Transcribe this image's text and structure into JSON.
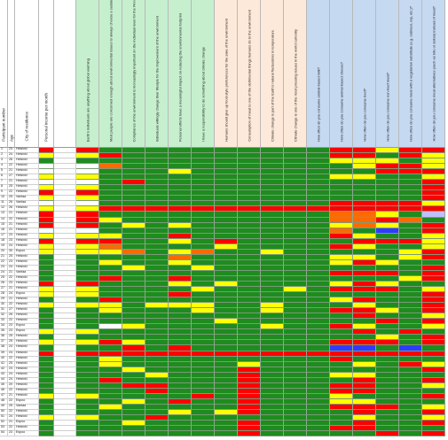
{
  "sheet": {
    "columns": [
      {
        "key": "participant",
        "label": "Participant number",
        "type": "label",
        "bg": "#ffffff"
      },
      {
        "key": "age",
        "label": "Age",
        "type": "label",
        "bg": "#ffffff"
      },
      {
        "key": "city",
        "label": "City of residence",
        "type": "label",
        "bg": "#ffffff"
      },
      {
        "key": "income",
        "label": "Personal income per month",
        "type": "label",
        "bg": "#ffffff"
      },
      {
        "key": "blank",
        "label": "",
        "type": "label",
        "bg": "#ffffff"
      },
      {
        "key": "q1",
        "label": "Earth's individuals are anything about global warming",
        "type": "q",
        "bg": "#c6efce"
      },
      {
        "key": "q2",
        "label": "Most people are concerned enough about environmental issues to always choose a sustainable option",
        "type": "q",
        "bg": "#c6efce"
      },
      {
        "key": "q3",
        "label": "Compliance of the environment is increasingly important on the individual level for the Finnish environment",
        "type": "q",
        "bg": "#c6efce"
      },
      {
        "key": "q4",
        "label": "Individuals willingly change their lifestyle for the improvement of the environment",
        "type": "q",
        "bg": "#c6efce"
      },
      {
        "key": "q5",
        "label": "Personal efforts have a meaningful impact on reducing the environmental footprint",
        "type": "q",
        "bg": "#c6efce"
      },
      {
        "key": "q6",
        "label": "I have a responsibility to do something about climate change",
        "type": "q",
        "bg": "#c6efce"
      },
      {
        "key": "q7",
        "label": "Humans should give up food-style preferences for the sake of the environment",
        "type": "q",
        "bg": "#fde9d9"
      },
      {
        "key": "q8",
        "label": "Consumption of meat is one of the detrimental things humans do to the environment",
        "type": "q",
        "bg": "#fde9d9"
      },
      {
        "key": "q9",
        "label": "Climate change is part of the Earth's natural fluctuations in temperature",
        "type": "q",
        "bg": "#fde9d9"
      },
      {
        "key": "q10",
        "label": "Climate change is one of the most pressing issues in the world currently",
        "type": "q",
        "bg": "#fde9d9"
      },
      {
        "key": "q11",
        "label": "How often do you consume animal-based milk?",
        "type": "q",
        "bg": "#c5d9f1"
      },
      {
        "key": "q12",
        "label": "How often do you consume animal-based cheese?",
        "type": "q",
        "bg": "#c5d9f1"
      },
      {
        "key": "q13",
        "label": "How often do you consume beef?",
        "type": "q",
        "bg": "#c5d9f1"
      },
      {
        "key": "q14",
        "label": "How often do you consume non-beef meat?",
        "type": "q",
        "bg": "#c5d9f1"
      },
      {
        "key": "q15",
        "label": "How often do you consume meat with a vegetarian substitute (e.g. oatmeal, soy, etc.)?",
        "type": "q",
        "bg": "#c5d9f1"
      },
      {
        "key": "q16",
        "label": "How often do you consume meat alternatives (such as tofu or seitan) instead of meat?",
        "type": "q",
        "bg": "#c5d9f1"
      }
    ],
    "colors": {
      "G": "#1e8c1e",
      "Y": "#ffff00",
      "R": "#ff0000",
      "O": "#ff6a00",
      "B": "#2f3cff",
      "P": "#c0c0ff",
      "W": "#ffffff"
    },
    "rows": [
      {
        "participant": "1",
        "age": "23",
        "city": "Helsinki",
        "cells": "RGGGGGGGGGGRRYRR",
        "vals": "4.........................1..4.."
      },
      {
        "participant": "2",
        "age": "24",
        "city": "Helsinki",
        "cells": "YRGGGGGGGGGRRGRY",
        "vals": "............................."
      },
      {
        "participant": "3",
        "age": "26",
        "city": "Helsinki",
        "cells": "GGGGGGGGGGGYYYGY",
        "vals": "....................4.4.4..3"
      },
      {
        "participant": "4",
        "age": "22",
        "city": "Helsinki",
        "cells": "WOGGGGGGGGGGYRRY",
        "vals": "1..........................."
      },
      {
        "participant": "5",
        "age": "21",
        "city": "Helsinki",
        "cells": "WGGGYGGGGGGGGRRR",
        "vals": "1.....2....................."
      },
      {
        "participant": "6",
        "age": "27",
        "city": "Helsinki",
        "cells": "YGGGGGGGGGGYYGGY",
        "vals": "....................4.4....."
      },
      {
        "participant": "7",
        "age": "21",
        "city": "Helsinki",
        "cells": "WGRGGGGGGGGGGGGR",
        "vals": "1..........................."
      },
      {
        "participant": "8",
        "age": "25",
        "city": "Helsinki",
        "cells": "YGGGGGGGGGGGGGGR",
        "vals": "............................"
      },
      {
        "participant": "9",
        "age": "22",
        "city": "Helsinki",
        "cells": "RGGGGGGGGGGGGGGR",
        "vals": "............................"
      },
      {
        "participant": "10",
        "age": "25",
        "city": "Vantaa",
        "cells": "YGGGGGGGGGGGGGGR",
        "vals": "............................"
      },
      {
        "participant": "11",
        "age": "26",
        "city": "Vantaa",
        "cells": "WGGGGGGGGGGRRRRY",
        "vals": "1...................3.3.3.3."
      },
      {
        "participant": "12",
        "age": "26",
        "city": "Helsinki",
        "cells": "YRRRRRRRRRRRRRRR",
        "vals": "..........................."
      },
      {
        "participant": "13",
        "age": "21",
        "city": "Helsinki",
        "cells": "RGGGGGGGGGGOOYGP",
        "vals": "....................3.3.4..."
      },
      {
        "participant": "14",
        "age": "22",
        "city": "Helsinki",
        "cells": "RYGGGGGGGGGOOROG",
        "vals": "2........................."
      },
      {
        "participant": "15",
        "age": "21",
        "city": "Helsinki",
        "cells": "RGYGYGGGGGGYOYGR",
        "vals": "......2...................."
      },
      {
        "participant": "16",
        "age": "21",
        "city": "Helsinki",
        "cells": "WGGGGGGGGGGOGBGR",
        "vals": "1..........................."
      },
      {
        "participant": "17",
        "age": "23",
        "city": "Helsinki",
        "cells": "YYGGRGGGGGGRYGGY",
        "vals": "...................4......4."
      },
      {
        "participant": "18",
        "age": "23",
        "city": "Helsinki",
        "cells": "RRGGYGRGGGGGRRRY",
        "vals": ".........................."
      },
      {
        "participant": "19",
        "age": "24",
        "city": "Helsinki",
        "cells": "YOGGGGYGGGGRYGGY",
        "vals": ".........................."
      },
      {
        "participant": "20",
        "age": "30",
        "city": "Espoo",
        "cells": "YYOGYOGGYGGGGGYR",
        "vals": "2.2.....2..2..2..........."
      },
      {
        "participant": "21",
        "age": "25",
        "city": "Helsinki",
        "cells": "GGGGOGGGGGGYYGYR",
        "vals": ".........................."
      },
      {
        "participant": "22",
        "age": "23",
        "city": "Helsinki",
        "cells": "GYGGYGGGGGGYRYGG",
        "vals": ".........................."
      },
      {
        "participant": "23",
        "age": "24",
        "city": "Helsinki",
        "cells": "GGYGGYGGGGGGGGGR",
        "vals": ".........................."
      },
      {
        "participant": "24",
        "age": "21",
        "city": "Vantaa",
        "cells": "GGGGGGGGGGGRRRGR",
        "vals": ".........................."
      },
      {
        "participant": "25",
        "age": "22",
        "city": "Helsinki",
        "cells": "GRGGRGGGGGGGGGYR",
        "vals": ".........................."
      },
      {
        "participant": "26",
        "age": "23",
        "city": "Helsinki",
        "cells": "RGGGYGYGGGGYRYGG",
        "vals": ".........................."
      },
      {
        "participant": "27",
        "age": "21",
        "city": "Helsinki",
        "cells": "YGGGGYGGGYGRRRGY",
        "vals": ".........................."
      },
      {
        "participant": "28",
        "age": "24",
        "city": "Espoo",
        "cells": "YGGGRGGGGGGGGGGR",
        "vals": ".........................."
      },
      {
        "participant": "29",
        "age": "21",
        "city": "Helsinki",
        "cells": "GRGGGGGGGGGYRGGR",
        "vals": ".........................."
      },
      {
        "participant": "30",
        "age": "22",
        "city": "Helsinki",
        "cells": "YYGYYYGGYGGGYGGR",
        "vals": ".........................."
      },
      {
        "participant": "31",
        "age": "27",
        "city": "Helsinki",
        "cells": "GYGGGYGGYGGRRYGR",
        "vals": ".........................."
      },
      {
        "participant": "32",
        "age": "26",
        "city": "Helsinki",
        "cells": "GGGGGGGGGGGGRGGY",
        "vals": ".........................."
      },
      {
        "participant": "33",
        "age": "22",
        "city": "Helsinki",
        "cells": "GGGGGGYGGGGGGRGR",
        "vals": ".........................."
      },
      {
        "participant": "34",
        "age": "23",
        "city": "Espoo",
        "cells": "GWYGGGGGYGGRYGGY",
        "vals": ".........................."
      },
      {
        "participant": "35",
        "age": "23",
        "city": "Espoo",
        "cells": "YGGGGGGGGGGGRGRG",
        "vals": ".........................."
      },
      {
        "participant": "36",
        "age": "25",
        "city": "Helsinki",
        "cells": "GGGGGGGGGGGGGYGR",
        "vals": ".........................."
      },
      {
        "participant": "37",
        "age": "25",
        "city": "Helsinki",
        "cells": "YRYGGGGGGGGRRRGR",
        "vals": ".........................."
      },
      {
        "participant": "38",
        "age": "24",
        "city": "Helsinki",
        "cells": "GGRGRGGGGGGBBGBG",
        "vals": ".........................."
      },
      {
        "participant": "39",
        "age": "24",
        "city": "Helsinki",
        "cells": "RRRRRRRRRRRRRRRR",
        "vals": ".........................."
      },
      {
        "participant": "40",
        "age": "22",
        "city": "Helsinki",
        "cells": "GYGGGGGGGGGRGGGG",
        "vals": ".........................."
      },
      {
        "participant": "41",
        "age": "25",
        "city": "Helsinki",
        "cells": "GYGGGGGYGGGGYGRY",
        "vals": ".........................."
      },
      {
        "participant": "42",
        "age": "23",
        "city": "Helsinki",
        "cells": "GGYGGGGRGGGGGGGR",
        "vals": ".........................."
      },
      {
        "participant": "43",
        "age": "24",
        "city": "Helsinki",
        "cells": "GGGYGGGRGGGYYGGG",
        "vals": ".........................."
      },
      {
        "participant": "44",
        "age": "24",
        "city": "Helsinki",
        "cells": "GRGGGGGRGGGGRGGR",
        "vals": ".........................."
      },
      {
        "participant": "45",
        "age": "20",
        "city": "Helsinki",
        "cells": "GGRRGGGRGGGRRGGY",
        "vals": ".........................."
      },
      {
        "participant": "46",
        "age": "22",
        "city": "Helsinki",
        "cells": "GGGRGGGRGGGRRGGG",
        "vals": ".........................."
      },
      {
        "participant": "47",
        "age": "21",
        "city": "Helsinki",
        "cells": "YGGGGRGRGGGYGGGR",
        "vals": ".........................."
      },
      {
        "participant": "48",
        "age": "22",
        "city": "Espoo",
        "cells": "GGYGRGGRGGGYYGGG",
        "vals": ".........................."
      },
      {
        "participant": "49",
        "age": "25",
        "city": "Vantaa",
        "cells": "GYGGGGGRGGGRRRGY",
        "vals": ".........................."
      },
      {
        "participant": "50",
        "age": "22",
        "city": "Helsinki",
        "cells": "GGGGYGYRGGGGRGGR",
        "vals": ".........................."
      },
      {
        "participant": "51",
        "age": "24",
        "city": "Helsinki",
        "cells": "YGGRGGGGGGGGYGGY",
        "vals": ".........................."
      },
      {
        "participant": "52",
        "age": "21",
        "city": "Espoo",
        "cells": "GGYGGGGRGGGGRGGR",
        "vals": ".........................."
      },
      {
        "participant": "53",
        "age": "22",
        "city": "Helsinki",
        "cells": "GGGGGGGRGGGRRGGG",
        "vals": ".........................."
      },
      {
        "participant": "54",
        "age": "23",
        "city": "Espoo",
        "cells": "GGGGGGGRGGGGGRGR",
        "vals": ".........................."
      }
    ]
  }
}
